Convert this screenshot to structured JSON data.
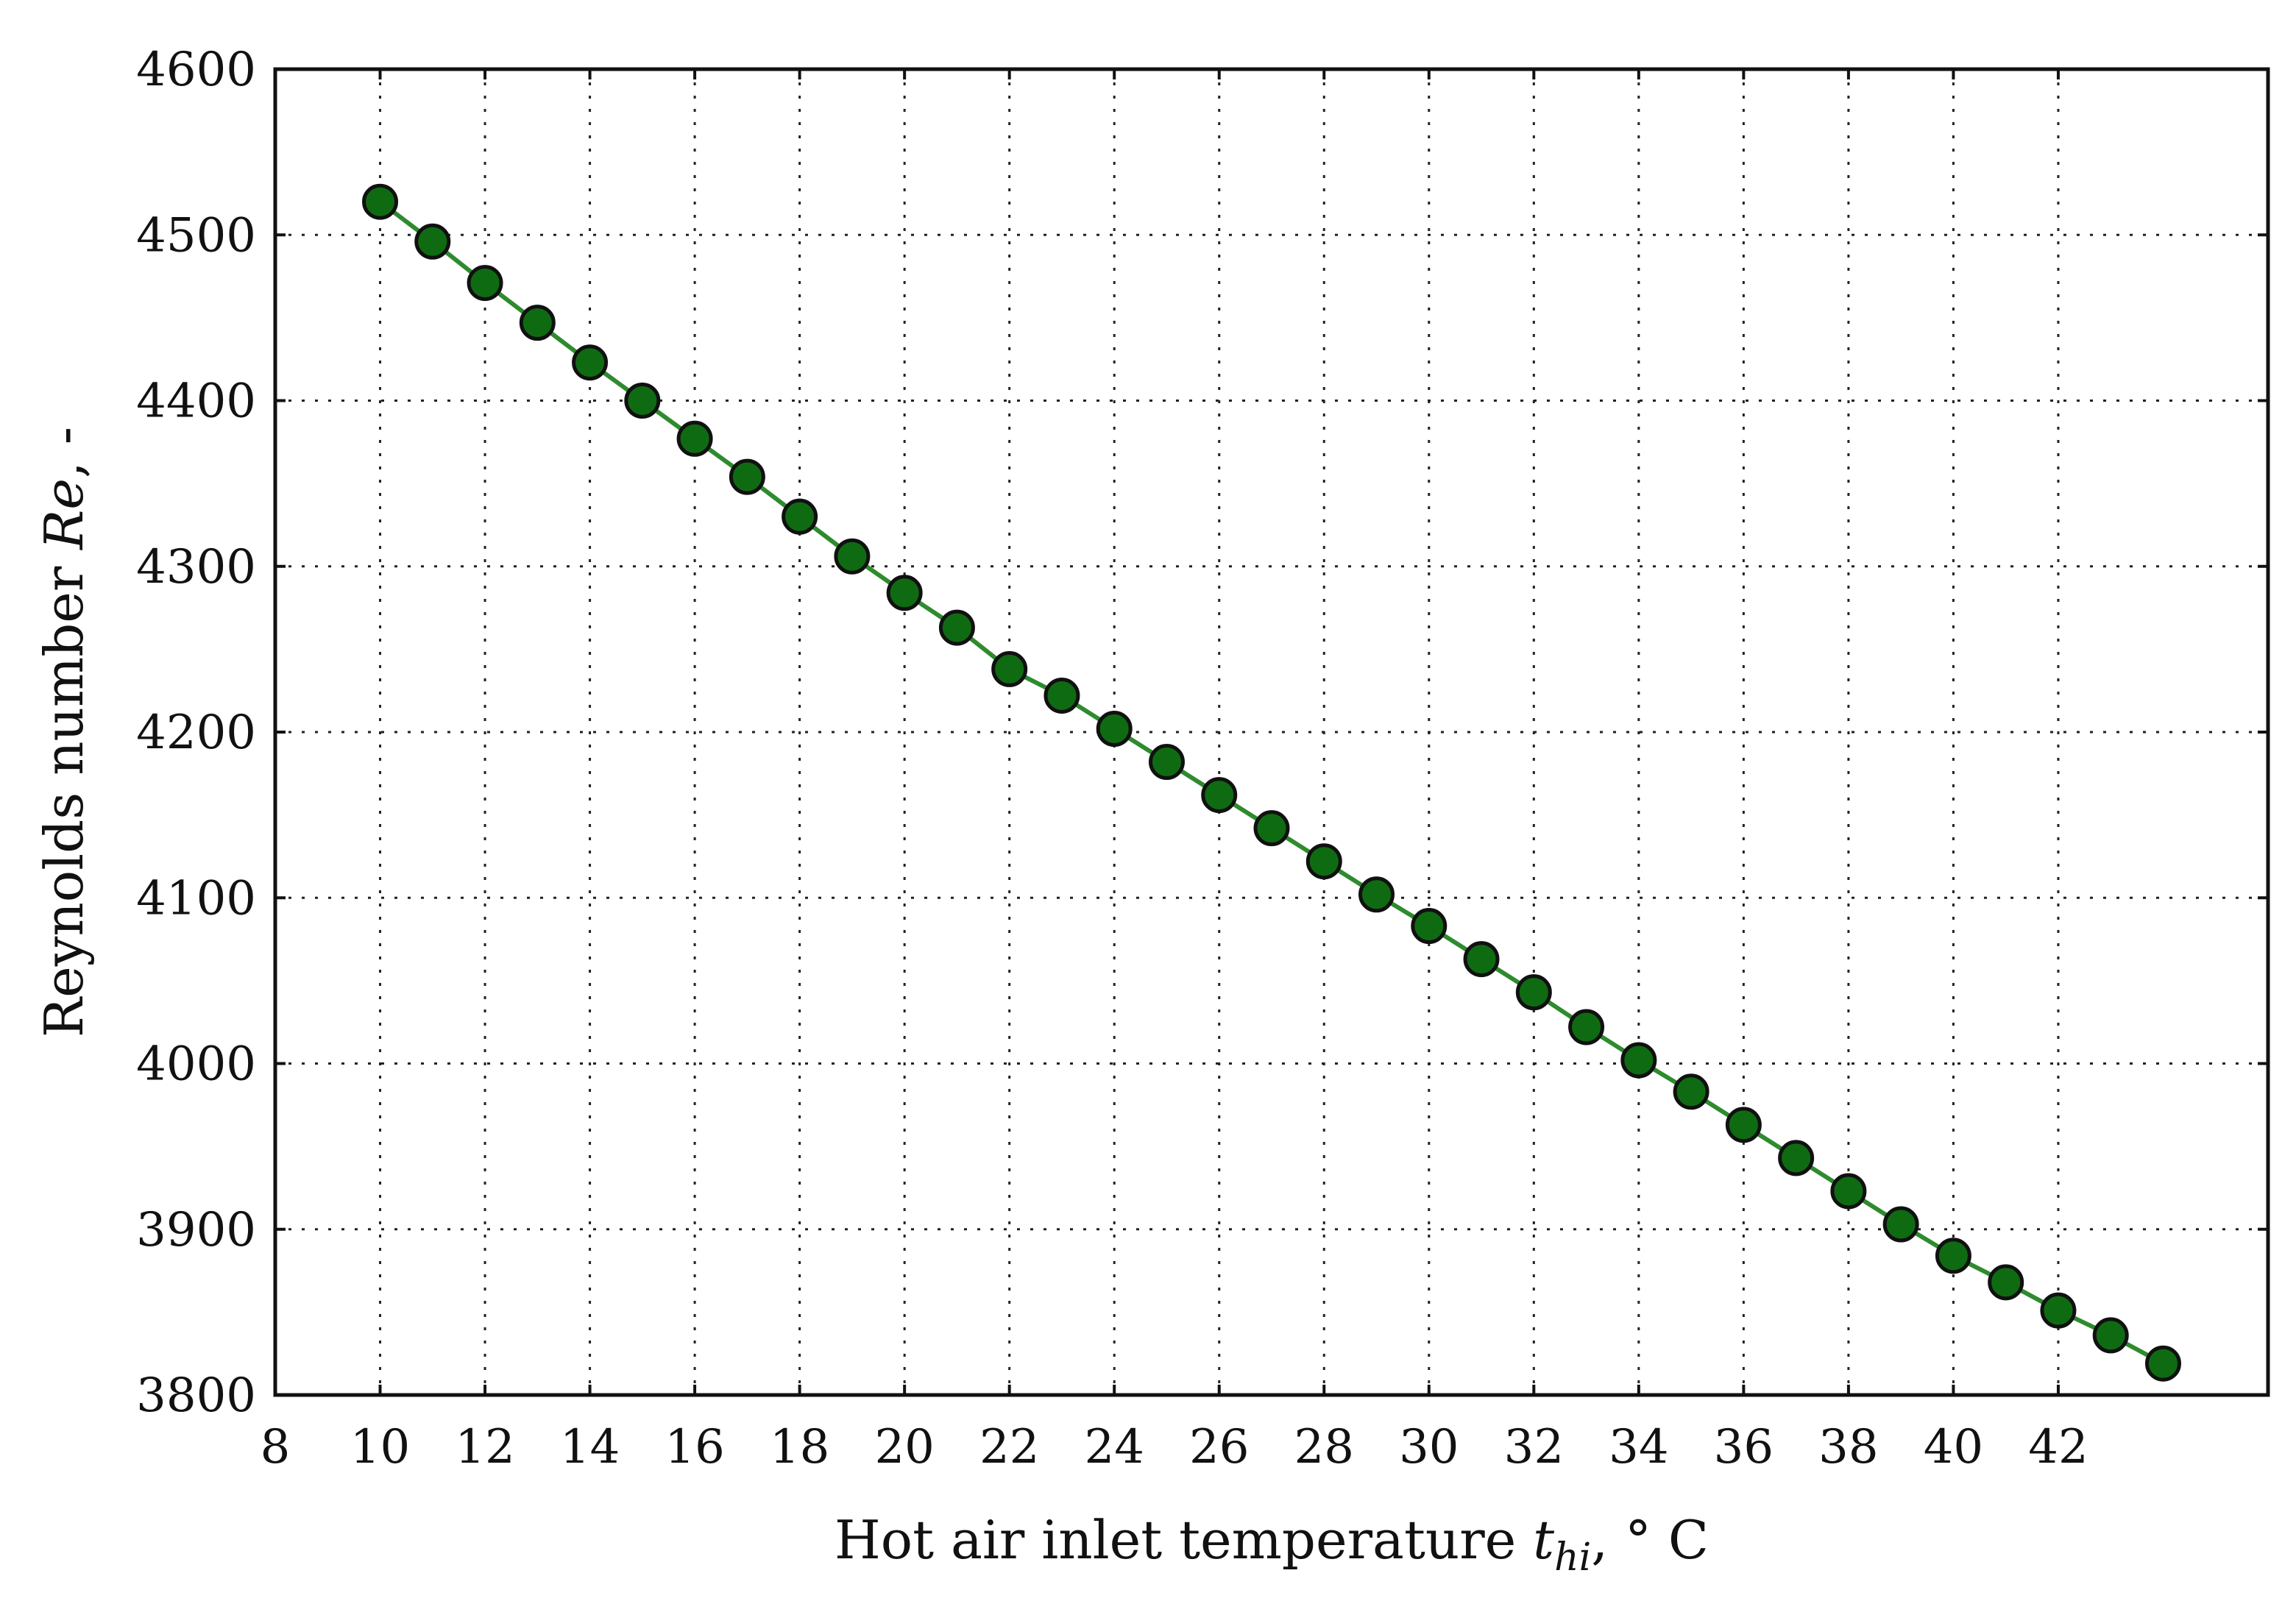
{
  "chart_data": {
    "type": "line",
    "title": "",
    "xlabel": {
      "prefix": "Hot air inlet temperature ",
      "symbol": "t",
      "subscript": "hi",
      "suffix": ", ° C"
    },
    "ylabel": {
      "prefix": "Reynolds number ",
      "symbol": "Re",
      "suffix": ", -"
    },
    "xlim": [
      8,
      46
    ],
    "ylim": [
      3800,
      4600
    ],
    "xticks": [
      8,
      10,
      12,
      14,
      16,
      18,
      20,
      22,
      24,
      26,
      28,
      30,
      32,
      34,
      36,
      38,
      40,
      42
    ],
    "yticks": [
      3800,
      3900,
      4000,
      4100,
      4200,
      4300,
      4400,
      4500,
      4600
    ],
    "grid": true,
    "legend": "none",
    "series": [
      {
        "color": "#2e8b2e",
        "marker_color": "#0f6b12",
        "x": [
          10,
          11,
          12,
          13,
          14,
          15,
          16,
          17,
          18,
          19,
          20,
          21,
          22,
          23,
          24,
          25,
          26,
          27,
          28,
          29,
          30,
          31,
          32,
          33,
          34,
          35,
          36,
          37,
          38,
          39,
          40,
          41,
          42,
          43,
          44
        ],
        "y": [
          4520,
          4496,
          4471,
          4447,
          4423,
          4400,
          4377,
          4354,
          4330,
          4306,
          4284,
          4263,
          4238,
          4222,
          4202,
          4182,
          4162,
          4142,
          4122,
          4102,
          4083,
          4063,
          4043,
          4022,
          4002,
          3983,
          3963,
          3943,
          3923,
          3903,
          3884,
          3868,
          3851,
          3836,
          3819
        ]
      }
    ]
  }
}
